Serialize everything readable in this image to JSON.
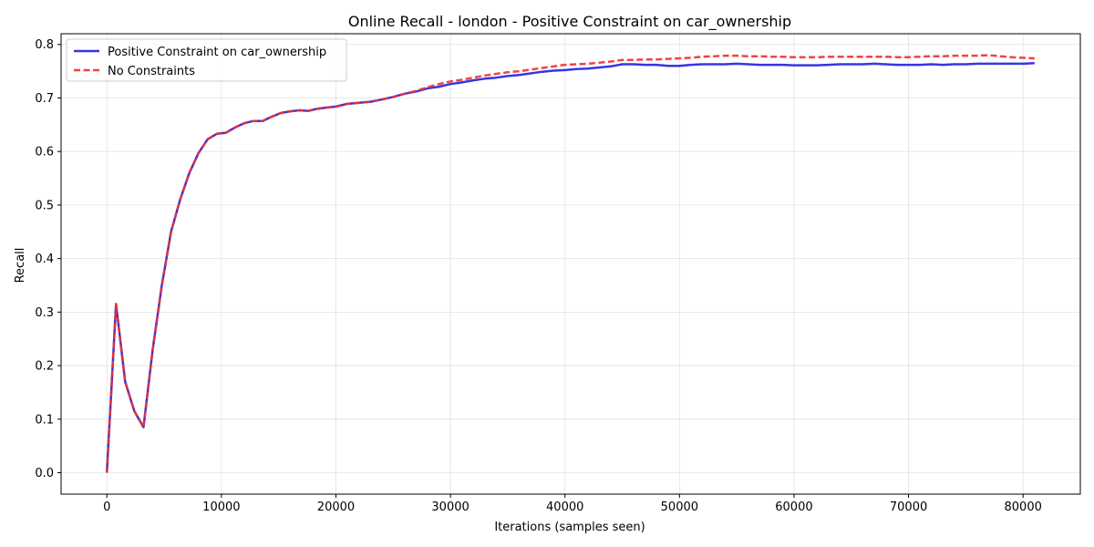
{
  "chart_data": {
    "type": "line",
    "title": "Online Recall - london - Positive Constraint on car_ownership",
    "xlabel": "Iterations (samples seen)",
    "ylabel": "Recall",
    "xlim": [
      -4000,
      85000
    ],
    "ylim": [
      -0.04,
      0.82
    ],
    "x_ticks": [
      0,
      10000,
      20000,
      30000,
      40000,
      50000,
      60000,
      70000,
      80000
    ],
    "x_tick_labels": [
      "0",
      "10000",
      "20000",
      "30000",
      "40000",
      "50000",
      "60000",
      "70000",
      "80000"
    ],
    "y_ticks": [
      0.0,
      0.1,
      0.2,
      0.3,
      0.4,
      0.5,
      0.6,
      0.7,
      0.8
    ],
    "y_tick_labels": [
      "0.0",
      "0.1",
      "0.2",
      "0.3",
      "0.4",
      "0.5",
      "0.6",
      "0.7",
      "0.8"
    ],
    "grid": true,
    "legend_position": "top-left",
    "series": [
      {
        "name": "Positive Constraint on car_ownership",
        "color": "#2020e0",
        "style": "solid",
        "x": [
          0,
          800,
          1600,
          2400,
          3200,
          4000,
          4800,
          5600,
          6400,
          7200,
          8000,
          8800,
          9600,
          10400,
          11200,
          12000,
          12800,
          13600,
          14400,
          15200,
          16000,
          16800,
          17600,
          18400,
          19200,
          20000,
          21000,
          22000,
          23000,
          24000,
          25000,
          26000,
          27000,
          28000,
          29000,
          30000,
          31000,
          32000,
          33000,
          34000,
          35000,
          36000,
          37000,
          38000,
          39000,
          40000,
          41000,
          42000,
          43000,
          44000,
          45000,
          46000,
          47000,
          48000,
          49000,
          50000,
          51000,
          52000,
          53000,
          54000,
          55000,
          56000,
          57000,
          58000,
          59000,
          60000,
          61000,
          62000,
          63000,
          64000,
          65000,
          66000,
          67000,
          68000,
          69000,
          70000,
          71000,
          72000,
          73000,
          74000,
          75000,
          76000,
          77000,
          78000,
          79000,
          80000,
          81000
        ],
        "y": [
          0.0,
          0.315,
          0.17,
          0.115,
          0.085,
          0.23,
          0.35,
          0.45,
          0.51,
          0.56,
          0.597,
          0.623,
          0.633,
          0.635,
          0.645,
          0.653,
          0.657,
          0.657,
          0.665,
          0.672,
          0.675,
          0.677,
          0.676,
          0.68,
          0.682,
          0.684,
          0.689,
          0.691,
          0.693,
          0.697,
          0.702,
          0.708,
          0.712,
          0.718,
          0.721,
          0.726,
          0.729,
          0.733,
          0.736,
          0.738,
          0.741,
          0.743,
          0.746,
          0.749,
          0.751,
          0.752,
          0.754,
          0.755,
          0.757,
          0.759,
          0.763,
          0.763,
          0.762,
          0.762,
          0.76,
          0.76,
          0.762,
          0.763,
          0.763,
          0.763,
          0.764,
          0.763,
          0.762,
          0.762,
          0.762,
          0.761,
          0.761,
          0.761,
          0.762,
          0.763,
          0.763,
          0.763,
          0.764,
          0.763,
          0.762,
          0.762,
          0.762,
          0.763,
          0.762,
          0.763,
          0.763,
          0.764,
          0.764,
          0.764,
          0.764,
          0.764,
          0.765
        ]
      },
      {
        "name": "No Constraints",
        "color": "#ee3030",
        "style": "dashed",
        "x": [
          0,
          800,
          1600,
          2400,
          3200,
          4000,
          4800,
          5600,
          6400,
          7200,
          8000,
          8800,
          9600,
          10400,
          11200,
          12000,
          12800,
          13600,
          14400,
          15200,
          16000,
          16800,
          17600,
          18400,
          19200,
          20000,
          21000,
          22000,
          23000,
          24000,
          25000,
          26000,
          27000,
          28000,
          29000,
          30000,
          31000,
          32000,
          33000,
          34000,
          35000,
          36000,
          37000,
          38000,
          39000,
          40000,
          41000,
          42000,
          43000,
          44000,
          45000,
          46000,
          47000,
          48000,
          49000,
          50000,
          51000,
          52000,
          53000,
          54000,
          55000,
          56000,
          57000,
          58000,
          59000,
          60000,
          61000,
          62000,
          63000,
          64000,
          65000,
          66000,
          67000,
          68000,
          69000,
          70000,
          71000,
          72000,
          73000,
          74000,
          75000,
          76000,
          77000,
          78000,
          79000,
          80000,
          81000
        ],
        "y": [
          0.0,
          0.315,
          0.17,
          0.115,
          0.085,
          0.23,
          0.35,
          0.45,
          0.51,
          0.56,
          0.597,
          0.623,
          0.633,
          0.635,
          0.645,
          0.653,
          0.657,
          0.657,
          0.665,
          0.672,
          0.675,
          0.677,
          0.676,
          0.68,
          0.682,
          0.684,
          0.689,
          0.691,
          0.693,
          0.697,
          0.702,
          0.708,
          0.713,
          0.72,
          0.726,
          0.731,
          0.734,
          0.738,
          0.742,
          0.745,
          0.748,
          0.75,
          0.753,
          0.756,
          0.759,
          0.762,
          0.763,
          0.764,
          0.766,
          0.768,
          0.771,
          0.771,
          0.772,
          0.772,
          0.773,
          0.774,
          0.775,
          0.777,
          0.778,
          0.779,
          0.779,
          0.778,
          0.778,
          0.777,
          0.777,
          0.776,
          0.776,
          0.776,
          0.777,
          0.777,
          0.777,
          0.777,
          0.777,
          0.777,
          0.776,
          0.776,
          0.777,
          0.778,
          0.778,
          0.779,
          0.779,
          0.779,
          0.78,
          0.778,
          0.776,
          0.775,
          0.774
        ]
      }
    ]
  }
}
